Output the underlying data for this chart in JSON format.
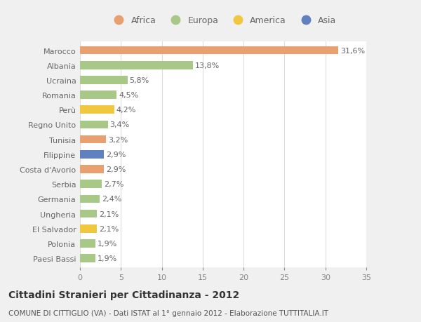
{
  "countries": [
    "Paesi Bassi",
    "Polonia",
    "El Salvador",
    "Ungheria",
    "Germania",
    "Serbia",
    "Costa d'Avorio",
    "Filippine",
    "Tunisia",
    "Regno Unito",
    "Perù",
    "Romania",
    "Ucraina",
    "Albania",
    "Marocco"
  ],
  "values": [
    1.9,
    1.9,
    2.1,
    2.1,
    2.4,
    2.7,
    2.9,
    2.9,
    3.2,
    3.4,
    4.2,
    4.5,
    5.8,
    13.8,
    31.6
  ],
  "labels": [
    "1,9%",
    "1,9%",
    "2,1%",
    "2,1%",
    "2,4%",
    "2,7%",
    "2,9%",
    "2,9%",
    "3,2%",
    "3,4%",
    "4,2%",
    "4,5%",
    "5,8%",
    "13,8%",
    "31,6%"
  ],
  "colors": [
    "#a8c888",
    "#a8c888",
    "#f0c840",
    "#a8c888",
    "#a8c888",
    "#a8c888",
    "#e8a070",
    "#6080c0",
    "#e8a070",
    "#a8c888",
    "#f0c840",
    "#a8c888",
    "#a8c888",
    "#a8c888",
    "#e8a070"
  ],
  "legend_names": [
    "Africa",
    "Europa",
    "America",
    "Asia"
  ],
  "legend_colors": [
    "#e8a070",
    "#a8c888",
    "#f0c840",
    "#6080c0"
  ],
  "xlim": [
    0,
    35
  ],
  "xticks": [
    0,
    5,
    10,
    15,
    20,
    25,
    30,
    35
  ],
  "title": "Cittadini Stranieri per Cittadinanza - 2012",
  "subtitle": "COMUNE DI CITTIGLIO (VA) - Dati ISTAT al 1° gennaio 2012 - Elaborazione TUTTITALIA.IT",
  "bg_color": "#f0f0f0",
  "plot_bg_color": "#ffffff",
  "grid_color": "#dddddd",
  "label_fontsize": 8,
  "tick_fontsize": 8,
  "title_fontsize": 10,
  "subtitle_fontsize": 7.5,
  "bar_height": 0.55
}
